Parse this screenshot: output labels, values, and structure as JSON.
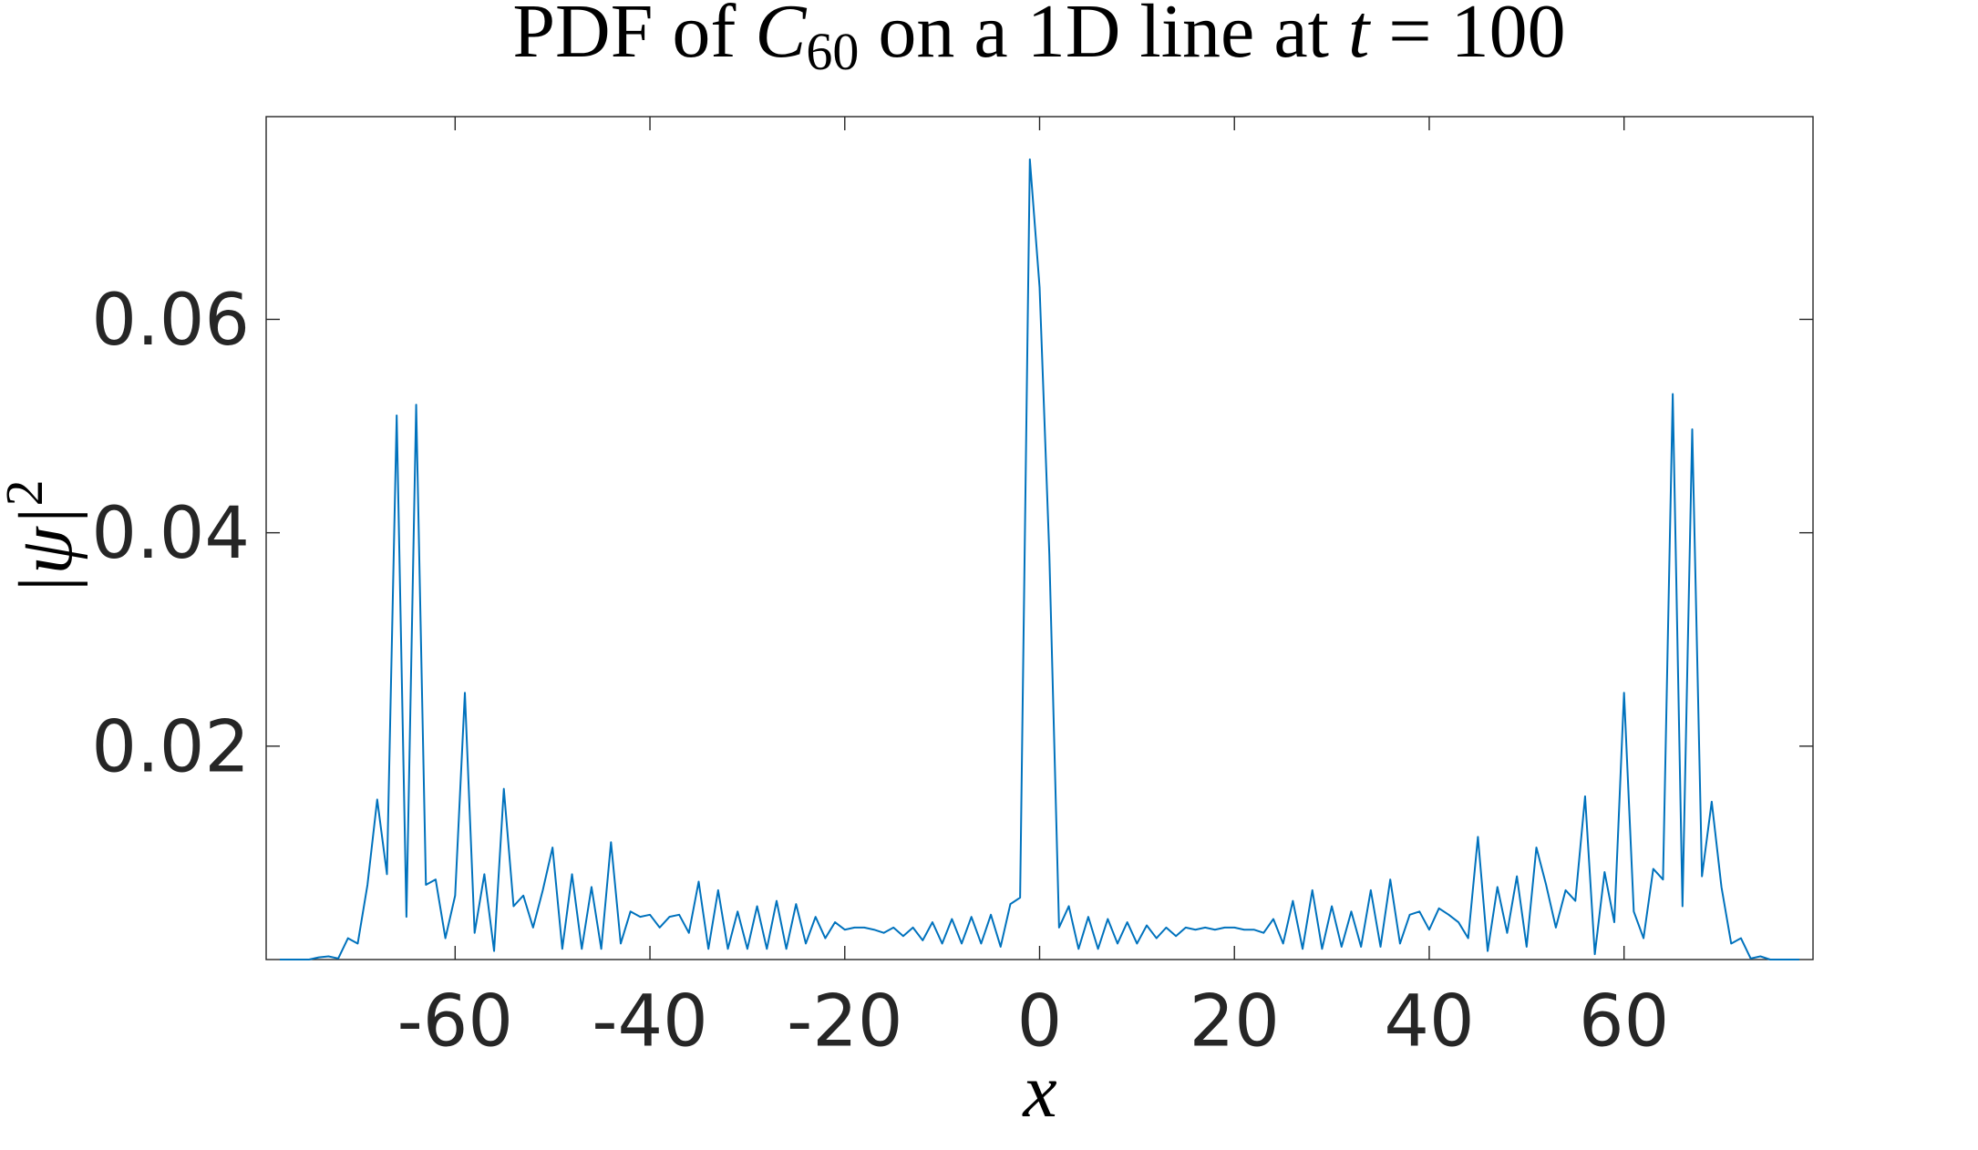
{
  "chart_data": {
    "type": "line",
    "title": [
      "PDF of ",
      "C",
      "60",
      " on a 1D line at ",
      "t",
      " = 100"
    ],
    "xlabel": "x",
    "ylabel": [
      "|ψ|",
      "2"
    ],
    "color": "#0072bd",
    "x": [
      -78,
      -77,
      -76,
      -75,
      -74,
      -73,
      -72,
      -71,
      -70,
      -69,
      -68,
      -67,
      -66,
      -65,
      -64,
      -63,
      -62,
      -61,
      -60,
      -59,
      -58,
      -57,
      -56,
      -55,
      -54,
      -53,
      -52,
      -51,
      -50,
      -49,
      -48,
      -47,
      -46,
      -45,
      -44,
      -43,
      -42,
      -41,
      -40,
      -39,
      -38,
      -37,
      -36,
      -35,
      -34,
      -33,
      -32,
      -31,
      -30,
      -29,
      -28,
      -27,
      -26,
      -25,
      -24,
      -23,
      -22,
      -21,
      -20,
      -19,
      -18,
      -17,
      -16,
      -15,
      -14,
      -13,
      -12,
      -11,
      -10,
      -9,
      -8,
      -7,
      -6,
      -5,
      -4,
      -3,
      -2,
      -1,
      0,
      1,
      2,
      3,
      4,
      5,
      6,
      7,
      8,
      9,
      10,
      11,
      12,
      13,
      14,
      15,
      16,
      17,
      18,
      19,
      20,
      21,
      22,
      23,
      24,
      25,
      26,
      27,
      28,
      29,
      30,
      31,
      32,
      33,
      34,
      35,
      36,
      37,
      38,
      39,
      40,
      41,
      42,
      43,
      44,
      45,
      46,
      47,
      48,
      49,
      50,
      51,
      52,
      53,
      54,
      55,
      56,
      57,
      58,
      59,
      60,
      61,
      62,
      63,
      64,
      65,
      66,
      67,
      68,
      69,
      70,
      71,
      72,
      73,
      74,
      75,
      76,
      77,
      78
    ],
    "values": [
      0,
      0,
      0,
      0,
      0.0002,
      0.0003,
      0.0001,
      0.002,
      0.0015,
      0.007,
      0.015,
      0.008,
      0.051,
      0.004,
      0.052,
      0.007,
      0.0075,
      0.002,
      0.006,
      0.025,
      0.0025,
      0.008,
      0.0008,
      0.016,
      0.005,
      0.006,
      0.003,
      0.0065,
      0.0105,
      0.001,
      0.008,
      0.001,
      0.0068,
      0.001,
      0.011,
      0.0015,
      0.0045,
      0.004,
      0.0042,
      0.003,
      0.004,
      0.0042,
      0.0025,
      0.0073,
      0.001,
      0.0065,
      0.001,
      0.0045,
      0.001,
      0.005,
      0.001,
      0.0055,
      0.001,
      0.0052,
      0.0015,
      0.004,
      0.002,
      0.0035,
      0.0028,
      0.003,
      0.003,
      0.0028,
      0.0025,
      0.003,
      0.0022,
      0.003,
      0.0018,
      0.0035,
      0.0015,
      0.0038,
      0.0015,
      0.004,
      0.0015,
      0.0042,
      0.0012,
      0.0052,
      0.0058,
      0.075,
      0.063,
      0.038,
      0.003,
      0.005,
      0.001,
      0.004,
      0.001,
      0.0038,
      0.0015,
      0.0035,
      0.0015,
      0.0032,
      0.002,
      0.003,
      0.0022,
      0.003,
      0.0028,
      0.003,
      0.0028,
      0.003,
      0.003,
      0.0028,
      0.0028,
      0.0025,
      0.0038,
      0.0015,
      0.0055,
      0.001,
      0.0065,
      0.001,
      0.005,
      0.0012,
      0.0045,
      0.0012,
      0.0065,
      0.0012,
      0.0075,
      0.0015,
      0.0042,
      0.0045,
      0.0028,
      0.0048,
      0.0042,
      0.0035,
      0.002,
      0.0115,
      0.0008,
      0.0068,
      0.0025,
      0.0078,
      0.0012,
      0.0105,
      0.007,
      0.003,
      0.0065,
      0.0055,
      0.0153,
      0.0005,
      0.0082,
      0.0035,
      0.025,
      0.0045,
      0.002,
      0.0085,
      0.0075,
      0.053,
      0.005,
      0.0497,
      0.0078,
      0.0148,
      0.0068,
      0.0015,
      0.002,
      0.0001,
      0.0003,
      0,
      0,
      0,
      0
    ],
    "xlim": [
      -79.4,
      79.4
    ],
    "xticks": [
      -60,
      -40,
      -20,
      0,
      20,
      40,
      60
    ],
    "ylim": [
      0,
      0.079
    ],
    "yticks": [
      0.02,
      0.04,
      0.06
    ]
  }
}
